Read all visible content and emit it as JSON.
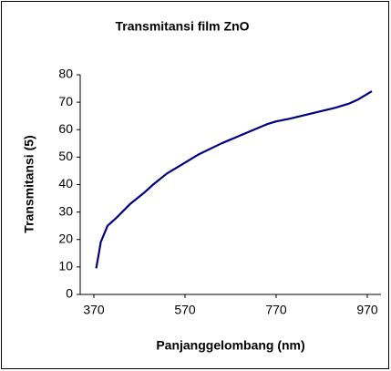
{
  "chart_data": {
    "type": "line",
    "title": "Transmitansi film ZnO",
    "xlabel": "Panjanggelombang (nm)",
    "ylabel": "Transmitansi (5)",
    "x": [
      375,
      380,
      385,
      390,
      400,
      420,
      450,
      480,
      500,
      530,
      570,
      600,
      650,
      700,
      750,
      770,
      800,
      850,
      900,
      930,
      950,
      970,
      980
    ],
    "series": [
      {
        "name": "Transmitansi",
        "color": "#000080",
        "values": [
          9.5,
          14,
          19,
          21,
          25,
          28,
          33,
          37,
          40,
          44,
          48,
          51,
          55,
          58.5,
          62,
          63,
          64,
          66,
          68,
          69.5,
          71,
          73,
          74
        ]
      }
    ],
    "xlim": [
      340,
      1000
    ],
    "xticks": [
      370,
      570,
      770,
      970
    ],
    "ylim": [
      0,
      80
    ],
    "yticks": [
      0,
      10,
      20,
      30,
      40,
      50,
      60,
      70,
      80
    ]
  }
}
